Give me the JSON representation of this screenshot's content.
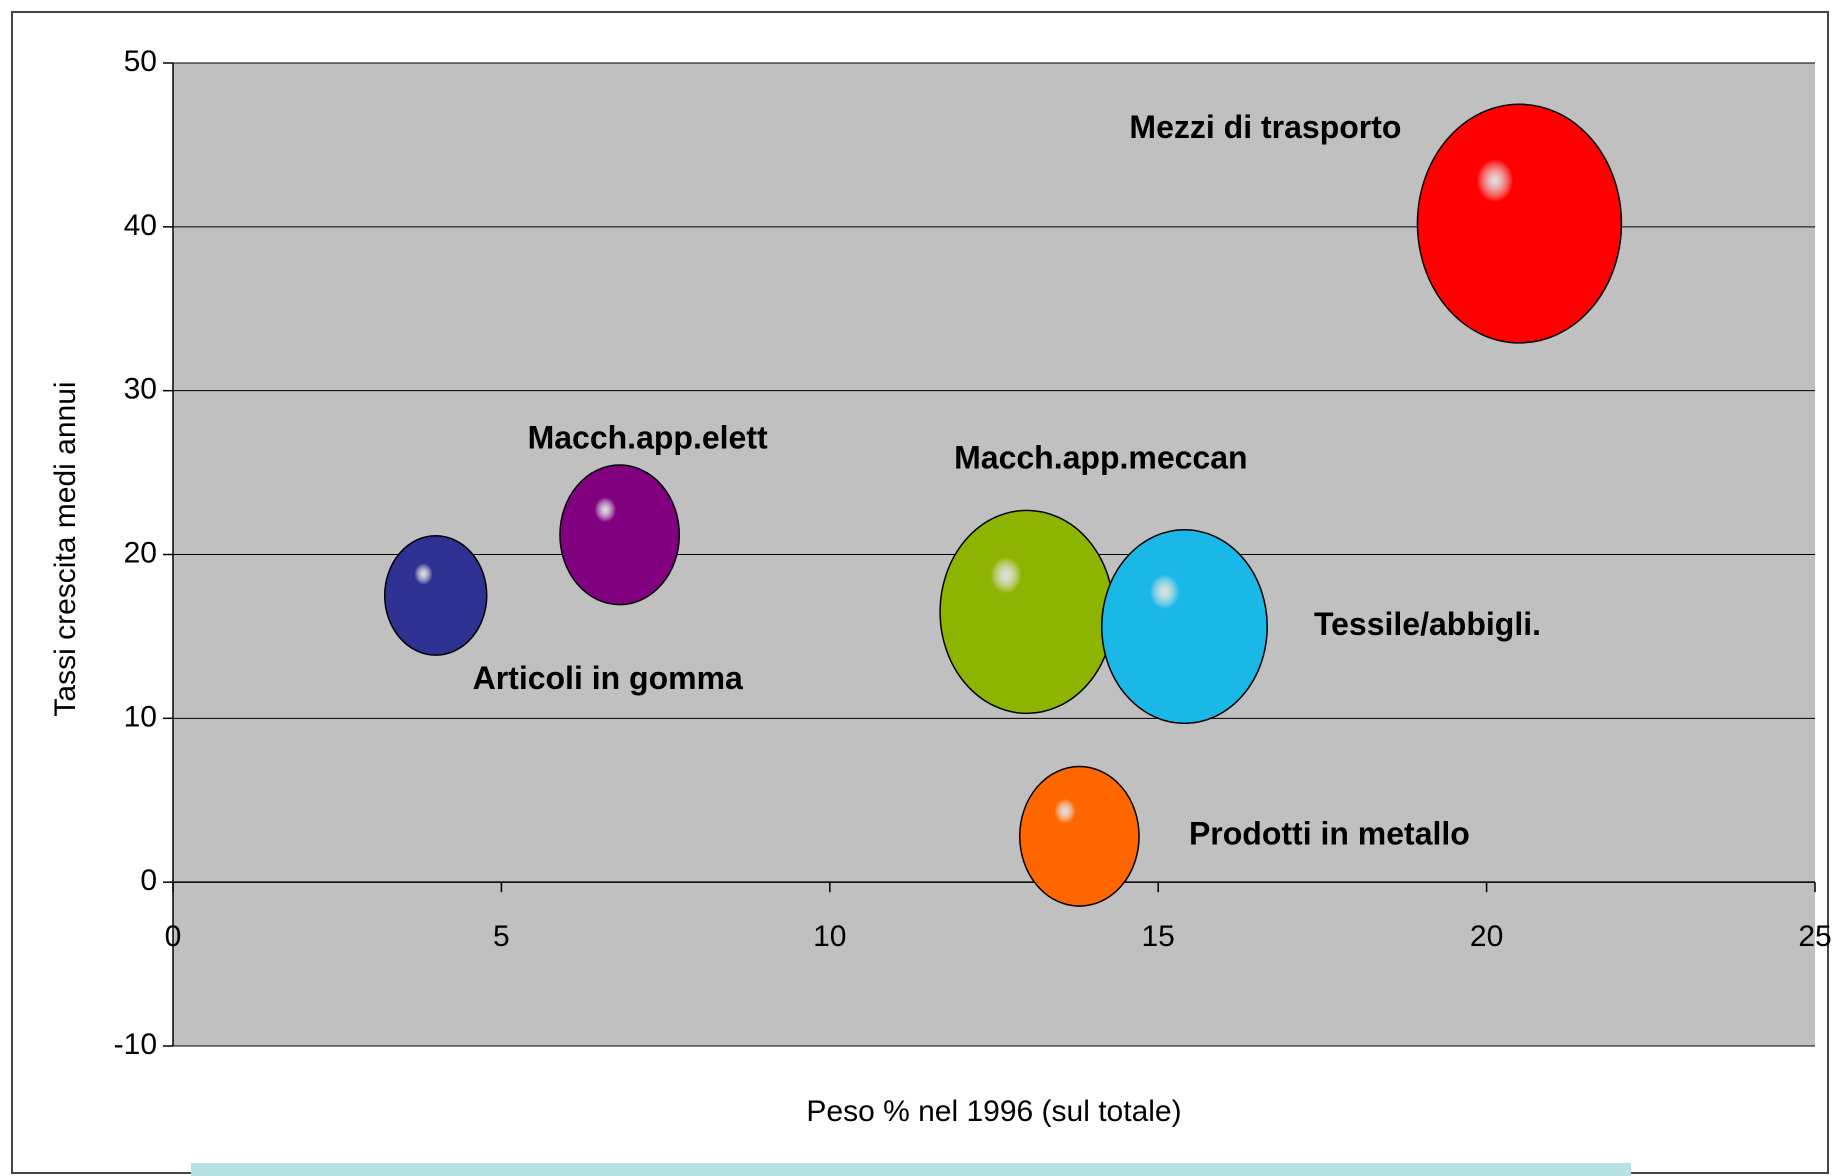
{
  "chart_data": {
    "type": "bubble",
    "x_label": "Peso % nel 1996 (sul totale)",
    "y_label": "Tassi crescita medi annui",
    "xlim": [
      0,
      25
    ],
    "xticks": [
      0,
      5,
      10,
      15,
      20,
      25
    ],
    "ylim": [
      -10,
      50
    ],
    "yticks": [
      -10,
      0,
      10,
      20,
      30,
      40,
      50
    ],
    "grid": true,
    "series": [
      {
        "name": "Articoli in gomma",
        "color": "#2e3192",
        "x": [
          4.0
        ],
        "values": [
          17.5
        ],
        "sizes": [
          1.9
        ]
      },
      {
        "name": "Macch.app.elett",
        "color": "#800080",
        "x": [
          6.8
        ],
        "values": [
          21.2
        ],
        "sizes": [
          2.6
        ]
      },
      {
        "name": "Macch.app.meccan",
        "color": "#8db400",
        "x": [
          13.0
        ],
        "values": [
          16.5
        ],
        "sizes": [
          5.5
        ]
      },
      {
        "name": "Tessile/abbigli.",
        "color": "#1ab8e6",
        "x": [
          15.4
        ],
        "values": [
          15.6
        ],
        "sizes": [
          5.0
        ]
      },
      {
        "name": "Mezzi di trasporto",
        "color": "#ff0000",
        "x": [
          20.5
        ],
        "values": [
          40.2
        ],
        "sizes": [
          7.6
        ]
      },
      {
        "name": "Prodotti in metallo",
        "color": "#ff6600",
        "x": [
          13.8
        ],
        "values": [
          2.8
        ],
        "sizes": [
          2.6
        ]
      }
    ]
  }
}
